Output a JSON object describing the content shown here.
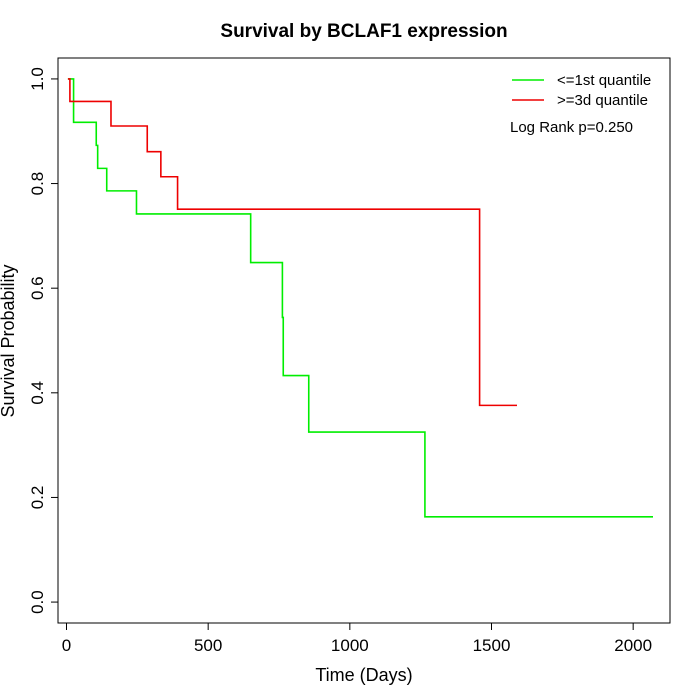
{
  "chart_data": {
    "type": "line",
    "title": "Survival by BCLAF1 expression",
    "xlabel": "Time (Days)",
    "ylabel": "Survival Probability",
    "xlim": [
      -30,
      2130
    ],
    "ylim": [
      -0.04,
      1.04
    ],
    "x_ticks": [
      0,
      500,
      1000,
      1500,
      2000
    ],
    "y_ticks": [
      0.0,
      0.2,
      0.4,
      0.6,
      0.8,
      1.0
    ],
    "x_tick_labels": [
      "0",
      "500",
      "1000",
      "1500",
      "2000"
    ],
    "y_tick_labels": [
      "0.0",
      "0.2",
      "0.4",
      "0.6",
      "0.8",
      "1.0"
    ],
    "grid": false,
    "legend_position": "top-right",
    "annotation": "Log Rank p=0.250",
    "series": [
      {
        "name": "<=1st quantile",
        "color": "#00ee00",
        "step_points": [
          [
            5,
            1.0
          ],
          [
            25,
            1.0
          ],
          [
            25,
            0.917
          ],
          [
            105,
            0.917
          ],
          [
            105,
            0.873
          ],
          [
            110,
            0.873
          ],
          [
            110,
            0.829
          ],
          [
            142,
            0.829
          ],
          [
            142,
            0.786
          ],
          [
            247,
            0.786
          ],
          [
            247,
            0.742
          ],
          [
            650,
            0.742
          ],
          [
            650,
            0.649
          ],
          [
            762,
            0.649
          ],
          [
            762,
            0.544
          ],
          [
            765,
            0.544
          ],
          [
            765,
            0.433
          ],
          [
            855,
            0.433
          ],
          [
            855,
            0.325
          ],
          [
            1265,
            0.325
          ],
          [
            1265,
            0.163
          ],
          [
            2070,
            0.163
          ]
        ]
      },
      {
        "name": ">=3d quantile",
        "color": "#ee0000",
        "step_points": [
          [
            5,
            1.0
          ],
          [
            12,
            1.0
          ],
          [
            12,
            0.957
          ],
          [
            157,
            0.957
          ],
          [
            157,
            0.91
          ],
          [
            285,
            0.91
          ],
          [
            285,
            0.861
          ],
          [
            333,
            0.861
          ],
          [
            333,
            0.813
          ],
          [
            392,
            0.813
          ],
          [
            392,
            0.751
          ],
          [
            1458,
            0.751
          ],
          [
            1458,
            0.376
          ],
          [
            1590,
            0.376
          ]
        ]
      }
    ]
  }
}
